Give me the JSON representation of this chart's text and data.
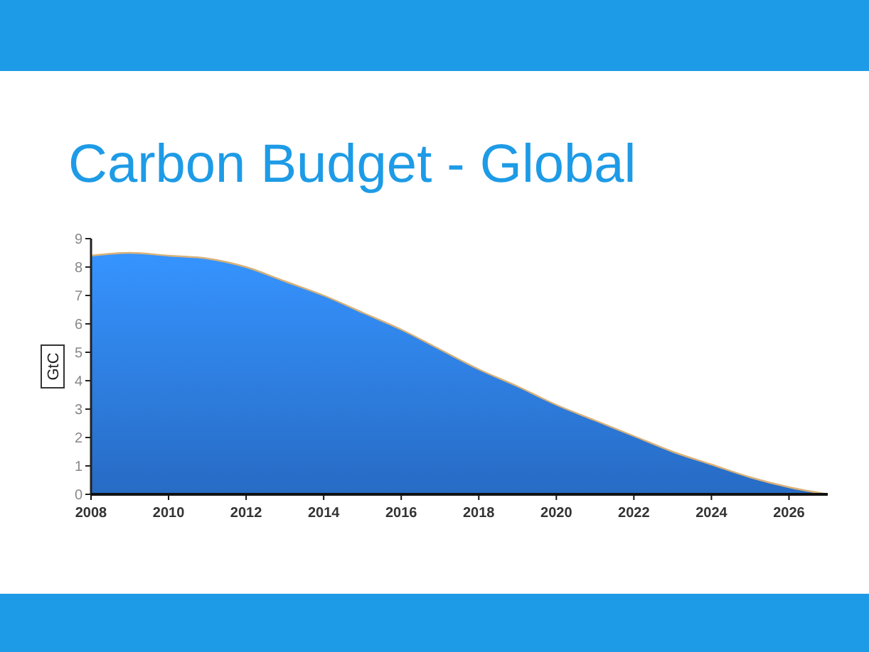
{
  "chart_data": {
    "type": "area",
    "title": "Carbon Budget - Global",
    "ylabel": "GtC",
    "x": [
      2008,
      2009,
      2010,
      2011,
      2012,
      2013,
      2014,
      2015,
      2016,
      2017,
      2018,
      2019,
      2020,
      2021,
      2022,
      2023,
      2024,
      2025,
      2026,
      2027
    ],
    "series": [
      {
        "color": "#2f80ea",
        "values": [
          8.4,
          8.5,
          8.4,
          8.3,
          8.0,
          7.5,
          7.0,
          6.4,
          5.8,
          5.1,
          4.4,
          3.8,
          3.15,
          2.6,
          2.05,
          1.5,
          1.05,
          0.6,
          0.25,
          0
        ]
      }
    ],
    "xlim": [
      2008,
      2027
    ],
    "xticks": [
      2008,
      2010,
      2012,
      2014,
      2016,
      2018,
      2020,
      2022,
      2024,
      2026
    ],
    "ylim": [
      0,
      9
    ],
    "yticks": [
      0,
      1,
      2,
      3,
      4,
      5,
      6,
      7,
      8,
      9
    ],
    "grid": false
  }
}
